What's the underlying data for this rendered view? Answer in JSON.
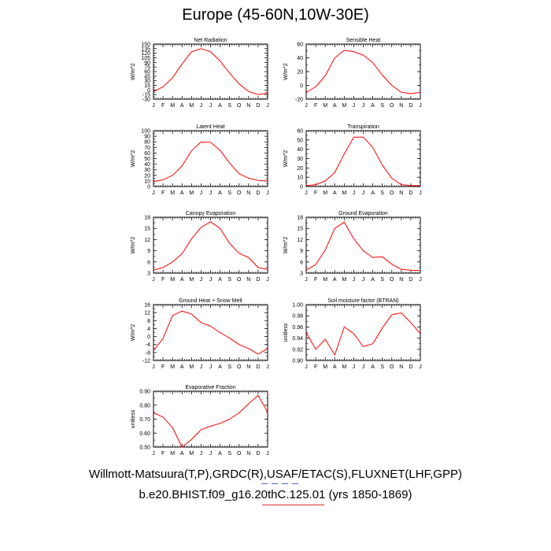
{
  "title": "Europe (45-60N,10W-30E)",
  "caption_line1": "Willmott-Matsuura(T,P),GRDC(R),USAF/ETAC(S),FLUXNET(LHF,GPP)",
  "caption_line2": "b.e20.BHIST.f09_g16.20thC.125.01 (yrs 1850-1869)",
  "colors": {
    "line": "#ff0000",
    "axis": "#000000"
  },
  "chart_data": [
    {
      "type": "line",
      "title": "Net Radiation",
      "ylabel": "W/m^2",
      "categories": [
        "J",
        "F",
        "M",
        "A",
        "M",
        "J",
        "J",
        "A",
        "S",
        "O",
        "N",
        "D",
        "J"
      ],
      "ylim": [
        -30,
        150
      ],
      "yticks": [
        -30,
        -15,
        0,
        15,
        30,
        45,
        60,
        75,
        90,
        105,
        120,
        135,
        150
      ],
      "values": [
        -5,
        10,
        40,
        85,
        125,
        135,
        125,
        95,
        55,
        20,
        -5,
        -15,
        -10
      ]
    },
    {
      "type": "line",
      "title": "Sensible Heat",
      "ylabel": "W/m^2",
      "categories": [
        "J",
        "F",
        "M",
        "A",
        "M",
        "J",
        "J",
        "A",
        "S",
        "O",
        "N",
        "D",
        "J"
      ],
      "ylim": [
        -20,
        60
      ],
      "yticks": [
        -20,
        0,
        20,
        40,
        60
      ],
      "values": [
        -10,
        -2,
        14,
        40,
        51,
        49,
        44,
        33,
        15,
        0,
        -10,
        -12,
        -10
      ]
    },
    {
      "type": "line",
      "title": "Latent Heat",
      "ylabel": "W/m^2",
      "categories": [
        "J",
        "F",
        "M",
        "A",
        "M",
        "J",
        "J",
        "A",
        "S",
        "O",
        "N",
        "D",
        "J"
      ],
      "ylim": [
        0,
        100
      ],
      "yticks": [
        0,
        10,
        20,
        30,
        40,
        50,
        60,
        70,
        80,
        90,
        100
      ],
      "values": [
        9,
        12,
        20,
        37,
        64,
        80,
        79,
        65,
        42,
        23,
        15,
        11,
        10
      ]
    },
    {
      "type": "line",
      "title": "Transpiration",
      "ylabel": "W/m^2",
      "categories": [
        "J",
        "F",
        "M",
        "A",
        "M",
        "J",
        "J",
        "A",
        "S",
        "O",
        "N",
        "D",
        "J"
      ],
      "ylim": [
        0,
        60
      ],
      "yticks": [
        0,
        10,
        20,
        30,
        40,
        50,
        60
      ],
      "values": [
        1,
        2,
        6,
        15,
        35,
        53,
        53,
        42,
        23,
        9,
        2,
        1,
        1
      ]
    },
    {
      "type": "line",
      "title": "Canopy Evaporation",
      "ylabel": "W/m^2",
      "categories": [
        "J",
        "F",
        "M",
        "A",
        "M",
        "J",
        "J",
        "A",
        "S",
        "O",
        "N",
        "D",
        "J"
      ],
      "ylim": [
        3,
        18
      ],
      "yticks": [
        3,
        6,
        9,
        12,
        15,
        18
      ],
      "values": [
        3.8,
        4.5,
        6.0,
        8.2,
        12.2,
        15.3,
        16.8,
        15.0,
        11.0,
        8.3,
        7.2,
        4.5,
        4.0
      ]
    },
    {
      "type": "line",
      "title": "Ground Evaporation",
      "ylabel": "W/m^2",
      "categories": [
        "J",
        "F",
        "M",
        "A",
        "M",
        "J",
        "J",
        "A",
        "S",
        "O",
        "N",
        "D",
        "J"
      ],
      "ylim": [
        3,
        18
      ],
      "yticks": [
        3,
        6,
        9,
        12,
        15,
        18
      ],
      "values": [
        3.8,
        5.3,
        9.2,
        15.0,
        16.7,
        12.2,
        9.0,
        7.2,
        7.4,
        5.4,
        4.0,
        3.8,
        3.7
      ]
    },
    {
      "type": "line",
      "title": "Ground Heat + Snow Melt",
      "ylabel": "W/m^2",
      "categories": [
        "J",
        "F",
        "M",
        "A",
        "M",
        "J",
        "J",
        "A",
        "S",
        "O",
        "N",
        "D",
        "J"
      ],
      "ylim": [
        -12,
        16
      ],
      "yticks": [
        -12,
        -8,
        -4,
        0,
        4,
        8,
        12,
        16
      ],
      "values": [
        -7,
        -1,
        10.5,
        12.8,
        11.2,
        7.0,
        5.2,
        2.0,
        -0.8,
        -4.0,
        -6.0,
        -8.8,
        -6.0
      ]
    },
    {
      "type": "line",
      "title": "Soil moisture factor (BTRAN)",
      "ylabel": "unitless",
      "categories": [
        "J",
        "F",
        "M",
        "A",
        "M",
        "J",
        "J",
        "A",
        "S",
        "O",
        "N",
        "D",
        "J"
      ],
      "ylim": [
        0.9,
        1.0
      ],
      "yticks": [
        0.9,
        0.92,
        0.94,
        0.96,
        0.98,
        1.0
      ],
      "yformat": 2,
      "values": [
        0.95,
        0.92,
        0.938,
        0.91,
        0.96,
        0.948,
        0.925,
        0.93,
        0.958,
        0.982,
        0.985,
        0.968,
        0.948
      ]
    },
    {
      "type": "line",
      "title": "Evaporative Fraction",
      "ylabel": "unitless",
      "categories": [
        "J",
        "F",
        "M",
        "A",
        "M",
        "J",
        "J",
        "A",
        "S",
        "O",
        "N",
        "D",
        "J"
      ],
      "ylim": [
        0.5,
        0.9
      ],
      "yticks": [
        0.5,
        0.6,
        0.7,
        0.8,
        0.9
      ],
      "yformat": 2,
      "values": [
        0.745,
        0.715,
        0.64,
        0.5,
        0.555,
        0.625,
        0.65,
        0.67,
        0.7,
        0.745,
        0.81,
        0.87,
        0.75
      ]
    }
  ]
}
